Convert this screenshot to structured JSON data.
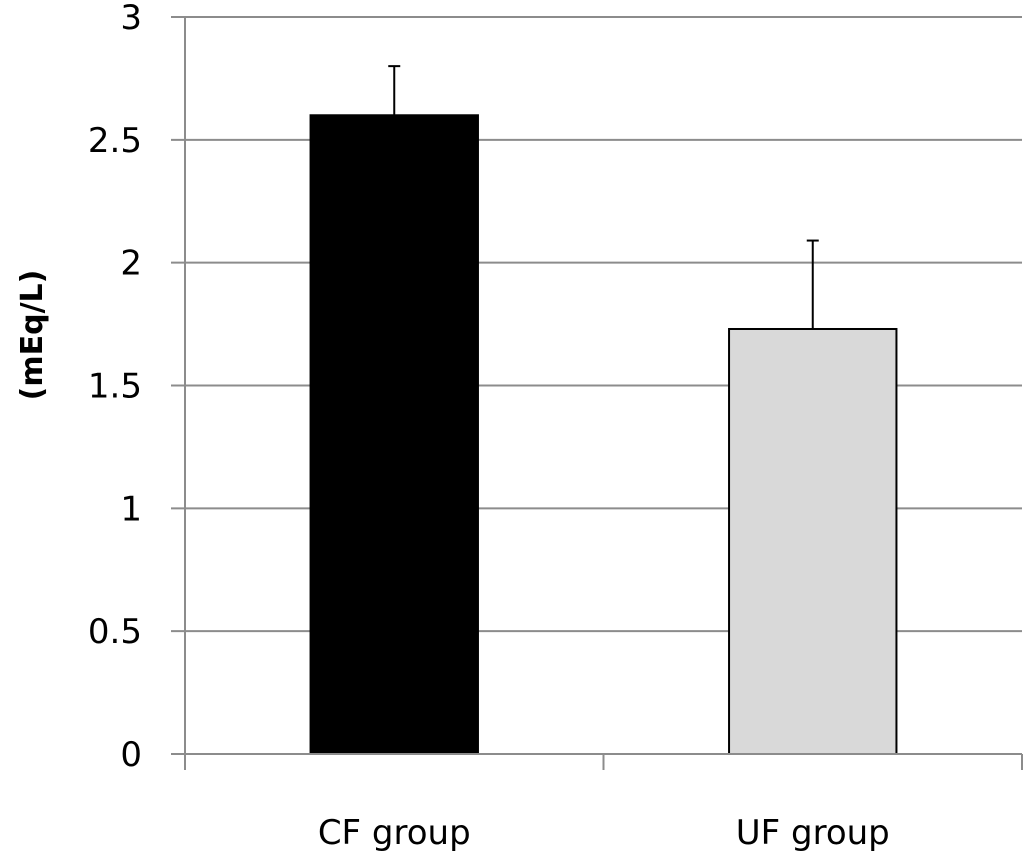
{
  "chart_data": {
    "type": "bar",
    "categories": [
      "CF group",
      "UF group"
    ],
    "values": [
      2.6,
      1.73
    ],
    "error_plus": [
      0.2,
      0.36
    ],
    "bar_colors": [
      "#000000",
      "#d9d9d9"
    ],
    "bar_edge_color": "#000000",
    "title": "",
    "xlabel": "",
    "ylabel": "(mEq/L)",
    "ylim": [
      0,
      3
    ],
    "yticks": [
      0,
      0.5,
      1,
      1.5,
      2,
      2.5,
      3
    ],
    "ytick_labels": [
      "0",
      "0.5",
      "1",
      "1.5",
      "2",
      "2.5",
      "3"
    ],
    "grid": true,
    "gridline_color": "#8c8c8c",
    "legend": "none"
  }
}
